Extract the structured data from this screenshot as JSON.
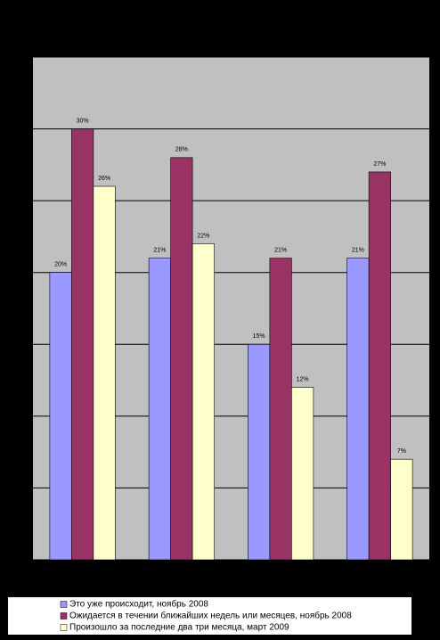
{
  "chart_data": {
    "type": "bar",
    "categories": [
      null,
      null,
      null,
      null
    ],
    "series": [
      {
        "name": "Это уже происходит, ноябрь 2008",
        "color": "#9999ff",
        "values": [
          20,
          21,
          15,
          21
        ],
        "value_labels": [
          "20%",
          "21%",
          "15%",
          "21%"
        ]
      },
      {
        "name": "Ожидается в течении ближайших недель или месяцев, ноябрь 2008",
        "color": "#993366",
        "values": [
          30,
          28,
          21,
          27
        ],
        "value_labels": [
          "30%",
          "28%",
          "21%",
          "27%"
        ]
      },
      {
        "name": "Произошло за последние два три месяца, март 2009",
        "color": "#ffffcc",
        "values": [
          26,
          22,
          12,
          7
        ],
        "value_labels": [
          "26%",
          "22%",
          "12%",
          "7%"
        ]
      }
    ],
    "ylim": [
      0,
      35
    ],
    "yticks": [
      0,
      5,
      10,
      15,
      20,
      25,
      30,
      35
    ],
    "grid": true,
    "legend": "bottom"
  }
}
